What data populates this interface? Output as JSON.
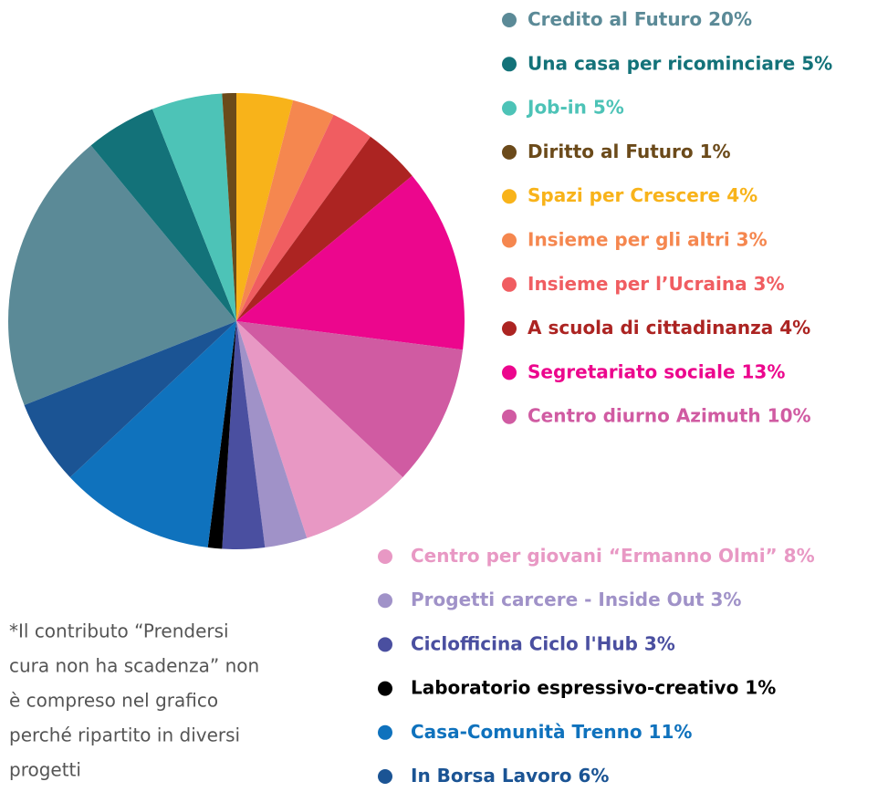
{
  "chart_data": {
    "type": "pie",
    "categories": [
      "Credito al Futuro",
      "Una casa per ricominciare",
      "Job-in",
      "Diritto al Futuro",
      "Spazi per Crescere",
      "Insieme per gli altri",
      "Insieme per l’Ucraina",
      "A scuola di cittadinanza",
      "Segretariato sociale",
      "Centro diurno Azimuth",
      "Centro per giovani “Ermanno Olmi”",
      "Progetti carcere - Inside Out",
      "Ciclofficina Ciclo l'Hub",
      "Laboratorio espressivo-creativo",
      "Casa-Comunità Trenno",
      "In Borsa Lavoro"
    ],
    "values": [
      20,
      5,
      5,
      1,
      4,
      3,
      3,
      4,
      13,
      10,
      8,
      3,
      3,
      1,
      11,
      6
    ],
    "value_labels": [
      "20%",
      "5%",
      "5%",
      "1%",
      "4%",
      "3%",
      "3%",
      "4%",
      "13%",
      "10%",
      "8%",
      "3%",
      "3%",
      "1%",
      "11%",
      "6%"
    ],
    "colors": [
      "#5b8a97",
      "#137279",
      "#4dc3b7",
      "#6b4a1a",
      "#f8b31a",
      "#f5874f",
      "#f05d61",
      "#ac2422",
      "#ec068d",
      "#d05ba2",
      "#e898c4",
      "#a092c8",
      "#4a4fa0",
      "#000000",
      "#0f72bd",
      "#1b5494"
    ],
    "note": [
      "*Il contributo “Prendersi",
      "cura non ha scadenza” non",
      "è compreso nel grafico",
      "perché ripartito in diversi",
      "progetti"
    ]
  }
}
